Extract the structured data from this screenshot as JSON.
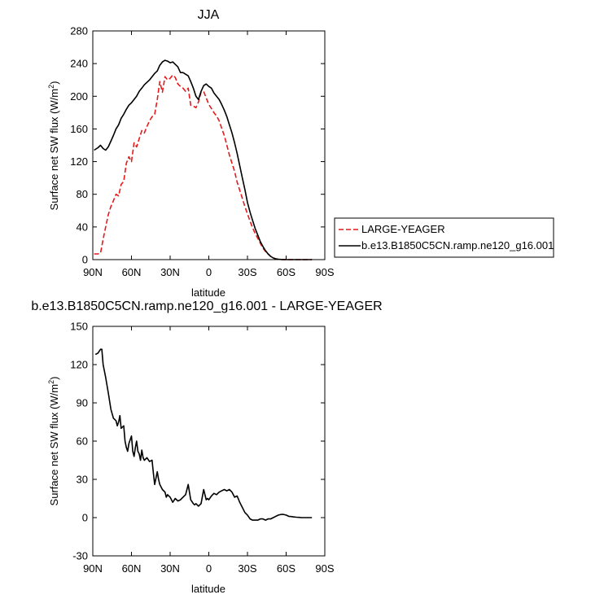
{
  "chart_data": [
    {
      "type": "line",
      "title": "JJA",
      "xlabel": "latitude",
      "ylabel": "Surface net SW flux (W/m",
      "ylabel_sup": "2",
      "ylabel_end": ")",
      "xlim": [
        90,
        -90
      ],
      "ylim": [
        0,
        280
      ],
      "x_ticks": [
        90,
        60,
        30,
        0,
        -30,
        -60,
        -90
      ],
      "x_tick_labels": [
        "90N",
        "60N",
        "30N",
        "0",
        "30S",
        "60S",
        "90S"
      ],
      "y_ticks": [
        0,
        40,
        80,
        120,
        160,
        200,
        240,
        280
      ],
      "y_tick_labels": [
        "0",
        "40",
        "80",
        "120",
        "160",
        "200",
        "240",
        "280"
      ],
      "legend": {
        "position": "right-outside"
      },
      "series": [
        {
          "name": "LARGE-YEAGER",
          "color": "#e41a1c",
          "dash": "dashed",
          "x": [
            89,
            86,
            84,
            82,
            80,
            78,
            76,
            74,
            72,
            70,
            68,
            66,
            64,
            62,
            60,
            58,
            56,
            54,
            52,
            50,
            48,
            46,
            44,
            42,
            40,
            38,
            36,
            34,
            32,
            30,
            28,
            26,
            24,
            22,
            20,
            18,
            16,
            14,
            12,
            10,
            8,
            6,
            4,
            2,
            0,
            -2,
            -4,
            -6,
            -8,
            -10,
            -12,
            -14,
            -16,
            -18,
            -20,
            -22,
            -24,
            -26,
            -28,
            -30,
            -32,
            -34,
            -36,
            -38,
            -40,
            -42,
            -44,
            -46,
            -48,
            -50,
            -52,
            -54,
            -56,
            -58,
            -60,
            -62,
            -64,
            -66,
            -68,
            -70,
            -72,
            -74,
            -76,
            -78,
            -80
          ],
          "y": [
            7,
            7,
            8,
            25,
            40,
            55,
            65,
            72,
            80,
            78,
            92,
            96,
            118,
            126,
            120,
            143,
            138,
            148,
            158,
            155,
            163,
            170,
            175,
            178,
            196,
            218,
            205,
            224,
            220,
            222,
            226,
            223,
            215,
            212,
            210,
            206,
            210,
            189,
            188,
            186,
            193,
            205,
            206,
            198,
            190,
            185,
            180,
            176,
            170,
            161,
            152,
            140,
            128,
            118,
            108,
            95,
            85,
            75,
            65,
            56,
            47,
            39,
            32,
            26,
            20,
            14,
            10,
            7,
            4,
            2,
            1,
            0.5,
            0.2,
            0.1,
            0,
            0,
            0,
            0,
            0,
            0,
            0,
            0,
            0,
            0,
            0
          ]
        },
        {
          "name": "b.e13.B1850C5CN.ramp.ne120_g16.001",
          "color": "#000000",
          "dash": "solid",
          "x": [
            89,
            86,
            84,
            82,
            80,
            78,
            76,
            74,
            72,
            70,
            68,
            66,
            64,
            62,
            60,
            58,
            56,
            54,
            52,
            50,
            48,
            46,
            44,
            42,
            40,
            38,
            36,
            34,
            32,
            30,
            28,
            26,
            24,
            22,
            20,
            18,
            16,
            14,
            12,
            10,
            8,
            6,
            4,
            2,
            0,
            -2,
            -4,
            -6,
            -8,
            -10,
            -12,
            -14,
            -16,
            -18,
            -20,
            -22,
            -24,
            -26,
            -28,
            -30,
            -32,
            -34,
            -36,
            -38,
            -40,
            -42,
            -44,
            -46,
            -48,
            -50,
            -52,
            -54,
            -56,
            -58,
            -60,
            -62,
            -64,
            -66,
            -68,
            -70,
            -72,
            -74,
            -76,
            -78,
            -80
          ],
          "y": [
            134,
            137,
            140,
            136,
            134,
            138,
            145,
            152,
            160,
            165,
            173,
            178,
            184,
            189,
            192,
            196,
            200,
            206,
            210,
            214,
            217,
            220,
            224,
            228,
            231,
            238,
            242,
            244,
            243,
            241,
            242,
            239,
            236,
            229,
            229,
            227,
            225,
            218,
            210,
            200,
            196,
            206,
            213,
            215,
            212,
            210,
            204,
            200,
            196,
            190,
            183,
            175,
            165,
            155,
            143,
            130,
            115,
            100,
            86,
            70,
            58,
            48,
            38,
            30,
            22,
            16,
            11,
            7,
            4,
            2,
            1,
            0.5,
            0.2,
            0.1,
            0,
            0,
            0,
            0,
            0,
            0,
            0,
            0,
            0,
            0,
            0
          ]
        }
      ]
    },
    {
      "type": "line",
      "title": "b.e13.B1850C5CN.ramp.ne120_g16.001 - LARGE-YEAGER",
      "xlabel": "latitude",
      "ylabel": "Surface net SW flux (W/m",
      "ylabel_sup": "2",
      "ylabel_end": ")",
      "xlim": [
        90,
        -90
      ],
      "ylim": [
        -30,
        150
      ],
      "x_ticks": [
        90,
        60,
        30,
        0,
        -30,
        -60,
        -90
      ],
      "x_tick_labels": [
        "90N",
        "60N",
        "30N",
        "0",
        "30S",
        "60S",
        "90S"
      ],
      "y_ticks": [
        -30,
        0,
        30,
        60,
        90,
        120,
        150
      ],
      "y_tick_labels": [
        "-30",
        "0",
        "30",
        "60",
        "90",
        "120",
        "150"
      ],
      "series": [
        {
          "color": "#000000",
          "dash": "solid",
          "x": [
            88,
            86,
            84,
            83,
            82,
            80,
            78,
            76,
            74,
            72,
            71,
            70,
            69,
            68,
            66,
            65,
            64,
            63,
            62,
            60,
            59,
            58,
            57,
            56,
            55,
            54,
            53,
            52,
            51,
            50,
            48,
            46,
            44,
            43,
            42,
            40,
            39,
            38,
            36,
            34,
            33,
            32,
            30,
            28,
            26,
            24,
            22,
            20,
            18,
            16,
            14,
            12,
            11,
            10,
            8,
            6,
            4,
            2,
            1,
            0,
            -2,
            -4,
            -6,
            -8,
            -10,
            -12,
            -14,
            -16,
            -18,
            -20,
            -22,
            -24,
            -26,
            -28,
            -30,
            -32,
            -34,
            -36,
            -38,
            -40,
            -42,
            -44,
            -46,
            -48,
            -50,
            -52,
            -54,
            -56,
            -58,
            -60,
            -62,
            -64,
            -66,
            -68,
            -70,
            -72,
            -74,
            -76,
            -78,
            -80
          ],
          "y": [
            128,
            129,
            132,
            132,
            120,
            110,
            98,
            85,
            78,
            76,
            72,
            75,
            80,
            70,
            72,
            60,
            55,
            52,
            58,
            64,
            52,
            48,
            55,
            60,
            52,
            50,
            45,
            53,
            47,
            45,
            47,
            44,
            45,
            35,
            26,
            36,
            30,
            26,
            22,
            20,
            16,
            18,
            16,
            12,
            15,
            13,
            14,
            16,
            18,
            26,
            14,
            11,
            10,
            11,
            9,
            11,
            22,
            14,
            15,
            14,
            17,
            19,
            18,
            20,
            21,
            22,
            21,
            22,
            20,
            16,
            17,
            12,
            8,
            4,
            2,
            -1,
            -2,
            -2,
            -2,
            -1,
            -1,
            -2,
            -1,
            -1,
            0,
            1,
            2,
            2.5,
            2.5,
            2,
            1,
            0.8,
            0.5,
            0.3,
            0.2,
            0,
            0,
            0,
            0,
            0
          ]
        }
      ]
    }
  ]
}
